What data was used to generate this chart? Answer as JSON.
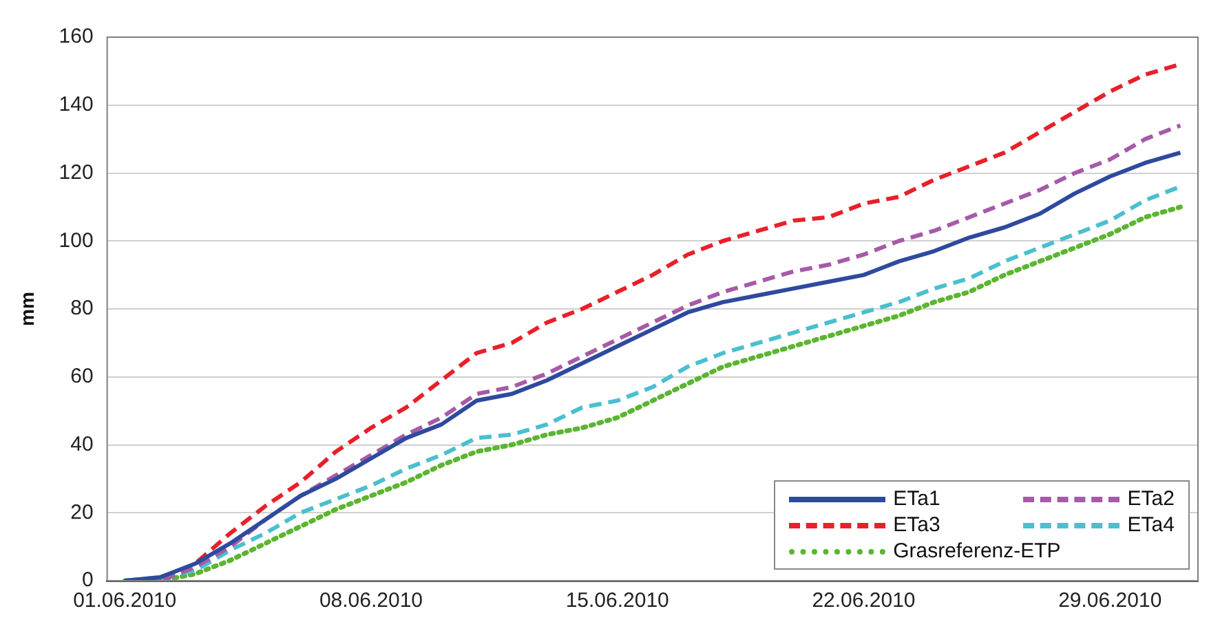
{
  "chart_data": {
    "type": "line",
    "ylabel": "mm",
    "categories": [
      "01.06.2010",
      null,
      null,
      null,
      null,
      null,
      null,
      "08.06.2010",
      null,
      null,
      null,
      null,
      null,
      null,
      "15.06.2010",
      null,
      null,
      null,
      null,
      null,
      null,
      "22.06.2010",
      null,
      null,
      null,
      null,
      null,
      null,
      "29.06.2010",
      null,
      null
    ],
    "ylim": [
      0,
      160
    ],
    "yticks": [
      0,
      20,
      40,
      60,
      80,
      100,
      120,
      140,
      160
    ],
    "grid": "y",
    "legend": "bottom right",
    "marker": "none",
    "series": [
      {
        "name": "ETa1",
        "color": "#2e4a9e",
        "line_style": "solid",
        "values": [
          0,
          1,
          5,
          11,
          18,
          25,
          30,
          36,
          42,
          46,
          53,
          55,
          59,
          64,
          69,
          74,
          79,
          82,
          84,
          86,
          88,
          90,
          94,
          97,
          101,
          104,
          108,
          114,
          119,
          123,
          126
        ]
      },
      {
        "name": "ETa2",
        "color": "#a65aa8",
        "line_style": "dashed",
        "values": [
          0,
          0,
          4,
          10,
          18,
          25,
          31,
          37,
          43,
          48,
          55,
          57,
          61,
          66,
          71,
          76,
          81,
          85,
          88,
          91,
          93,
          96,
          100,
          103,
          107,
          111,
          115,
          120,
          124,
          130,
          134
        ]
      },
      {
        "name": "ETa3",
        "color": "#e8202a",
        "line_style": "dashed",
        "values": [
          0,
          0,
          5,
          14,
          22,
          29,
          38,
          45,
          51,
          59,
          67,
          70,
          76,
          80,
          85,
          90,
          96,
          100,
          103,
          106,
          107,
          111,
          113,
          118,
          122,
          126,
          132,
          138,
          144,
          149,
          152
        ]
      },
      {
        "name": "ETa4",
        "color": "#4bbfcf",
        "line_style": "dashed",
        "values": [
          0,
          1,
          3,
          9,
          14,
          20,
          24,
          28,
          33,
          37,
          42,
          43,
          46,
          51,
          53,
          57,
          63,
          67,
          70,
          73,
          76,
          79,
          82,
          86,
          89,
          94,
          98,
          102,
          106,
          112,
          116
        ]
      },
      {
        "name": "Grasreferenz-ETP",
        "color": "#5cb531",
        "line_style": "dotted",
        "values": [
          0,
          0,
          2,
          6,
          11,
          16,
          21,
          25,
          29,
          34,
          38,
          40,
          43,
          45,
          48,
          53,
          58,
          63,
          66,
          69,
          72,
          75,
          78,
          82,
          85,
          90,
          94,
          98,
          102,
          107,
          110
        ]
      }
    ]
  }
}
